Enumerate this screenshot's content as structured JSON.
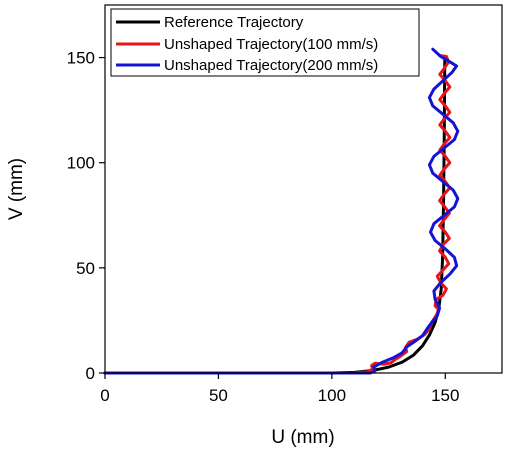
{
  "chart_data": {
    "type": "line",
    "title": "",
    "xlabel": "U (mm)",
    "ylabel": "V (mm)",
    "xlim": [
      0,
      175
    ],
    "ylim": [
      0,
      175
    ],
    "xticks": [
      0,
      50,
      100,
      150
    ],
    "yticks": [
      0,
      50,
      100,
      150
    ],
    "grid": false,
    "legend_position": "top-left",
    "series": [
      {
        "name": "Reference Trajectory",
        "color": "#000000",
        "points": [
          [
            0,
            0
          ],
          [
            100,
            0
          ],
          [
            110,
            0.3
          ],
          [
            118,
            1.2
          ],
          [
            125,
            2.8
          ],
          [
            131,
            5.2
          ],
          [
            136,
            8.5
          ],
          [
            140,
            13
          ],
          [
            143,
            18
          ],
          [
            145.5,
            24
          ],
          [
            147.2,
            31
          ],
          [
            148.2,
            40
          ],
          [
            148.8,
            55
          ],
          [
            149.2,
            80
          ],
          [
            149.5,
            110
          ],
          [
            149.8,
            150
          ]
        ]
      },
      {
        "name": "Unshaped Trajectory(100 mm/s)",
        "color": "#e8141b",
        "points": [
          [
            0,
            0
          ],
          [
            110,
            0
          ],
          [
            116,
            0.6
          ],
          [
            118,
            2
          ],
          [
            117.5,
            3.5
          ],
          [
            119,
            4.6
          ],
          [
            123,
            4.2
          ],
          [
            126,
            4.8
          ],
          [
            128,
            6.5
          ],
          [
            130.5,
            8.2
          ],
          [
            133,
            10.2
          ],
          [
            132.5,
            12.2
          ],
          [
            134,
            14.6
          ],
          [
            138,
            16.2
          ],
          [
            141,
            18.4
          ],
          [
            143,
            21
          ],
          [
            144,
            24
          ],
          [
            145.8,
            27
          ],
          [
            147.2,
            30
          ],
          [
            145.5,
            32
          ],
          [
            146,
            35
          ],
          [
            149,
            37
          ],
          [
            150.5,
            40
          ],
          [
            148,
            43
          ],
          [
            146.5,
            46
          ],
          [
            149,
            49
          ],
          [
            151.5,
            52
          ],
          [
            150,
            55
          ],
          [
            147.5,
            58
          ],
          [
            149,
            61
          ],
          [
            151.8,
            64
          ],
          [
            150,
            67
          ],
          [
            147.5,
            70
          ],
          [
            149.5,
            73
          ],
          [
            151.8,
            76
          ],
          [
            149.8,
            79
          ],
          [
            147.5,
            82
          ],
          [
            149.5,
            85
          ],
          [
            152,
            88
          ],
          [
            150,
            91
          ],
          [
            147.6,
            94
          ],
          [
            149.5,
            97
          ],
          [
            152,
            100
          ],
          [
            150,
            103
          ],
          [
            147.6,
            106
          ],
          [
            149.6,
            109
          ],
          [
            152,
            112
          ],
          [
            150,
            115
          ],
          [
            147.6,
            118
          ],
          [
            149.6,
            121
          ],
          [
            152,
            124
          ],
          [
            150,
            127
          ],
          [
            147.6,
            130
          ],
          [
            149.6,
            133
          ],
          [
            152,
            136
          ],
          [
            150,
            139
          ],
          [
            147.6,
            142
          ],
          [
            149.6,
            145
          ],
          [
            151.5,
            148
          ],
          [
            150.5,
            150.5
          ],
          [
            147.5,
            151
          ]
        ]
      },
      {
        "name": "Unshaped Trajectory(200 mm/s)",
        "color": "#1414d2",
        "points": [
          [
            0,
            0
          ],
          [
            117,
            0
          ],
          [
            119,
            1
          ],
          [
            118.5,
            2.8
          ],
          [
            122,
            5
          ],
          [
            127,
            7.2
          ],
          [
            131,
            9.6
          ],
          [
            133,
            12.4
          ],
          [
            136.5,
            15
          ],
          [
            140,
            17.8
          ],
          [
            142,
            21
          ],
          [
            144,
            24
          ],
          [
            146.5,
            27.2
          ],
          [
            147.5,
            31
          ],
          [
            145.5,
            35
          ],
          [
            145,
            39
          ],
          [
            148,
            43
          ],
          [
            152,
            47
          ],
          [
            155,
            51
          ],
          [
            154,
            55
          ],
          [
            150,
            59
          ],
          [
            145.5,
            63
          ],
          [
            143.5,
            67
          ],
          [
            145,
            71
          ],
          [
            149.5,
            75
          ],
          [
            154,
            79
          ],
          [
            155.5,
            83
          ],
          [
            153.5,
            87
          ],
          [
            149,
            91
          ],
          [
            144.5,
            95
          ],
          [
            143,
            99
          ],
          [
            145,
            103
          ],
          [
            149.5,
            107
          ],
          [
            154,
            111
          ],
          [
            155.5,
            115
          ],
          [
            153.5,
            119
          ],
          [
            149,
            123
          ],
          [
            144.5,
            127
          ],
          [
            143,
            131
          ],
          [
            145,
            135
          ],
          [
            149,
            139
          ],
          [
            153,
            143
          ],
          [
            155,
            146
          ],
          [
            152,
            148
          ],
          [
            148,
            150.5
          ],
          [
            144.5,
            154
          ]
        ]
      }
    ]
  }
}
